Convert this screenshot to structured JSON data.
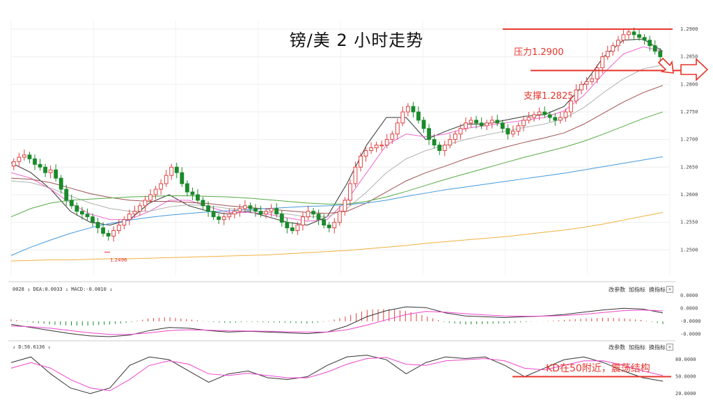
{
  "title": "镑/美  2 小时走势",
  "annotations": {
    "resistance": "压力1.2900",
    "support": "支撑1.2825",
    "low_label": "1.2496",
    "kd_note": "KD在50附近，震荡结构"
  },
  "macd_panel": {
    "header": "0028 ↓ DEA:0.0033 ↓ MACD:-0.0010 ↓",
    "buttons": [
      "改参数",
      "加指标",
      "换指标"
    ],
    "close": "×"
  },
  "kd_panel": {
    "header": "↓ D:56.6136 ↓",
    "buttons": [
      "改参数",
      "加指标",
      "换指标"
    ],
    "close": "×"
  },
  "colors": {
    "up": "#e04040",
    "down": "#1a8a2a",
    "annotation": "#e8332a",
    "ma_black": "#333333",
    "ma_pink": "#ee66cc",
    "ma_grey": "#b0b0b0",
    "ma_brown": "#a05050",
    "ma_green": "#55aa44",
    "ma_blue": "#4499dd",
    "ma_orange": "#f2b040",
    "macd_dif": "#333333",
    "macd_dea": "#ee44cc",
    "kd_k": "#333333",
    "kd_d": "#ee44cc"
  },
  "chart_data": [
    {
      "type": "candlestick",
      "ylim": [
        1.2455,
        1.2915
      ],
      "y_ticks": [
        "1.2900",
        "1.2850",
        "1.2800",
        "1.2750",
        "1.2700",
        "1.2650",
        "1.2600",
        "1.2550",
        "1.2500"
      ],
      "resistance_level": 1.29,
      "support_level": 1.2825,
      "low_marker": 1.2496,
      "closes": [
        1.266,
        1.2668,
        1.2672,
        1.2665,
        1.2655,
        1.265,
        1.264,
        1.2645,
        1.263,
        1.261,
        1.259,
        1.258,
        1.257,
        1.2565,
        1.256,
        1.255,
        1.254,
        1.253,
        1.2525,
        1.2535,
        1.2545,
        1.2555,
        1.2565,
        1.257,
        1.258,
        1.259,
        1.26,
        1.261,
        1.262,
        1.2635,
        1.265,
        1.264,
        1.262,
        1.2605,
        1.26,
        1.259,
        1.258,
        1.257,
        1.256,
        1.2555,
        1.256,
        1.2565,
        1.257,
        1.2575,
        1.258,
        1.2575,
        1.257,
        1.2565,
        1.257,
        1.2575,
        1.2565,
        1.255,
        1.254,
        1.2535,
        1.2545,
        1.256,
        1.257,
        1.2565,
        1.2555,
        1.2545,
        1.254,
        1.255,
        1.257,
        1.259,
        1.262,
        1.265,
        1.267,
        1.268,
        1.2685,
        1.269,
        1.269,
        1.27,
        1.271,
        1.273,
        1.275,
        1.276,
        1.275,
        1.2735,
        1.272,
        1.27,
        1.269,
        1.268,
        1.269,
        1.27,
        1.271,
        1.272,
        1.273,
        1.2735,
        1.273,
        1.2725,
        1.273,
        1.2735,
        1.273,
        1.272,
        1.271,
        1.2715,
        1.2725,
        1.2735,
        1.274,
        1.2745,
        1.275,
        1.2745,
        1.274,
        1.2735,
        1.274,
        1.275,
        1.277,
        1.279,
        1.28,
        1.2805,
        1.281,
        1.283,
        1.285,
        1.286,
        1.287,
        1.288,
        1.289,
        1.2895,
        1.289,
        1.2885,
        1.288,
        1.287,
        1.286,
        1.285
      ],
      "moving_averages": [
        {
          "color_key": "ma_black",
          "values": [
            1.2658,
            1.264,
            1.261,
            1.257,
            1.255,
            1.2545,
            1.2555,
            1.2585,
            1.26,
            1.258,
            1.257,
            1.2565,
            1.257,
            1.256,
            1.255,
            1.2545,
            1.256,
            1.262,
            1.269,
            1.274,
            1.274,
            1.27,
            1.2715,
            1.2728,
            1.2728,
            1.2735,
            1.2742,
            1.2745,
            1.276,
            1.28,
            1.285,
            1.288,
            1.2882,
            1.286
          ]
        },
        {
          "color_key": "ma_pink",
          "values": [
            1.264,
            1.263,
            1.261,
            1.2585,
            1.2565,
            1.2555,
            1.2555,
            1.257,
            1.259,
            1.259,
            1.2578,
            1.2568,
            1.2568,
            1.2565,
            1.2558,
            1.2552,
            1.2555,
            1.259,
            1.264,
            1.269,
            1.271,
            1.2705,
            1.271,
            1.272,
            1.2725,
            1.273,
            1.2735,
            1.274,
            1.2752,
            1.278,
            1.282,
            1.2855,
            1.2868,
            1.286
          ]
        },
        {
          "color_key": "ma_grey",
          "values": [
            1.2625,
            1.2622,
            1.2612,
            1.2598,
            1.2585,
            1.2575,
            1.257,
            1.257,
            1.2578,
            1.2582,
            1.258,
            1.2575,
            1.2572,
            1.2568,
            1.2565,
            1.256,
            1.256,
            1.2575,
            1.2605,
            1.264,
            1.2665,
            1.268,
            1.269,
            1.27,
            1.2708,
            1.2715,
            1.2722,
            1.2728,
            1.2738,
            1.2758,
            1.2785,
            1.281,
            1.2828,
            1.2835
          ]
        },
        {
          "color_key": "ma_brown",
          "values": [
            1.263,
            1.2628,
            1.2622,
            1.2612,
            1.2602,
            1.2595,
            1.259,
            1.2588,
            1.2588,
            1.2586,
            1.2584,
            1.258,
            1.2577,
            1.2574,
            1.2571,
            1.2568,
            1.2566,
            1.257,
            1.2585,
            1.2605,
            1.2625,
            1.264,
            1.2652,
            1.2665,
            1.2676,
            1.2686,
            1.2695,
            1.2703,
            1.2712,
            1.2728,
            1.2748,
            1.2768,
            1.2785,
            1.2798
          ]
        },
        {
          "color_key": "ma_green",
          "values": [
            1.256,
            1.2575,
            1.2585,
            1.259,
            1.2592,
            1.2594,
            1.2596,
            1.2597,
            1.2598,
            1.2598,
            1.2597,
            1.2596,
            1.2594,
            1.2591,
            1.2588,
            1.2585,
            1.2583,
            1.2583,
            1.2588,
            1.2596,
            1.2606,
            1.2617,
            1.2628,
            1.2638,
            1.2648,
            1.2658,
            1.2668,
            1.2677,
            1.2686,
            1.2697,
            1.271,
            1.2724,
            1.2738,
            1.275
          ]
        },
        {
          "color_key": "ma_blue",
          "values": [
            1.249,
            1.2505,
            1.2518,
            1.253,
            1.254,
            1.2548,
            1.2554,
            1.2559,
            1.2563,
            1.2566,
            1.2569,
            1.2571,
            1.2573,
            1.2575,
            1.2577,
            1.2579,
            1.258,
            1.2582,
            1.2585,
            1.259,
            1.2597,
            1.2603,
            1.2609,
            1.2614,
            1.2619,
            1.2624,
            1.2629,
            1.2634,
            1.2639,
            1.2645,
            1.2651,
            1.2657,
            1.2663,
            1.2669
          ]
        },
        {
          "color_key": "ma_orange",
          "values": [
            1.248,
            1.2481,
            1.2482,
            1.2482,
            1.2483,
            1.2484,
            1.2484,
            1.2485,
            1.2486,
            1.2487,
            1.2488,
            1.2489,
            1.249,
            1.2491,
            1.2493,
            1.2495,
            1.2497,
            1.2499,
            1.2502,
            1.2505,
            1.2508,
            1.2512,
            1.2515,
            1.2518,
            1.2521,
            1.2524,
            1.2528,
            1.2532,
            1.2536,
            1.2541,
            1.2547,
            1.2554,
            1.2561,
            1.2568
          ]
        }
      ]
    },
    {
      "type": "macd",
      "y_ticks": [
        "0.0000",
        "0.0000",
        "-0.0000",
        "-0.0000"
      ],
      "dif": [
        -0.2,
        -0.4,
        -0.6,
        -0.8,
        -0.95,
        -1.0,
        -0.9,
        -0.6,
        -0.4,
        -0.45,
        -0.6,
        -0.7,
        -0.65,
        -0.7,
        -0.75,
        -0.8,
        -0.7,
        -0.3,
        0.3,
        0.7,
        0.95,
        0.9,
        0.55,
        0.35,
        0.3,
        0.25,
        0.3,
        0.35,
        0.45,
        0.6,
        0.75,
        0.85,
        0.8,
        0.55
      ],
      "dea": [
        -0.3,
        -0.35,
        -0.45,
        -0.6,
        -0.75,
        -0.85,
        -0.85,
        -0.75,
        -0.6,
        -0.55,
        -0.58,
        -0.62,
        -0.63,
        -0.65,
        -0.68,
        -0.7,
        -0.7,
        -0.55,
        -0.25,
        0.1,
        0.45,
        0.65,
        0.6,
        0.5,
        0.42,
        0.35,
        0.33,
        0.34,
        0.38,
        0.46,
        0.58,
        0.7,
        0.74,
        0.68
      ]
    },
    {
      "type": "kd",
      "y_ticks": [
        "80.0000",
        "50.0000",
        "20.0000"
      ],
      "reference_level": 50,
      "k": [
        75,
        85,
        55,
        30,
        20,
        30,
        70,
        85,
        80,
        60,
        40,
        55,
        60,
        48,
        45,
        50,
        70,
        85,
        88,
        80,
        55,
        75,
        85,
        82,
        85,
        70,
        50,
        65,
        80,
        85,
        75,
        60,
        48,
        42
      ],
      "d": [
        65,
        75,
        65,
        45,
        30,
        25,
        45,
        70,
        78,
        72,
        55,
        52,
        56,
        52,
        48,
        48,
        58,
        72,
        82,
        84,
        72,
        70,
        78,
        80,
        82,
        78,
        65,
        62,
        70,
        78,
        78,
        70,
        60,
        52
      ]
    }
  ]
}
